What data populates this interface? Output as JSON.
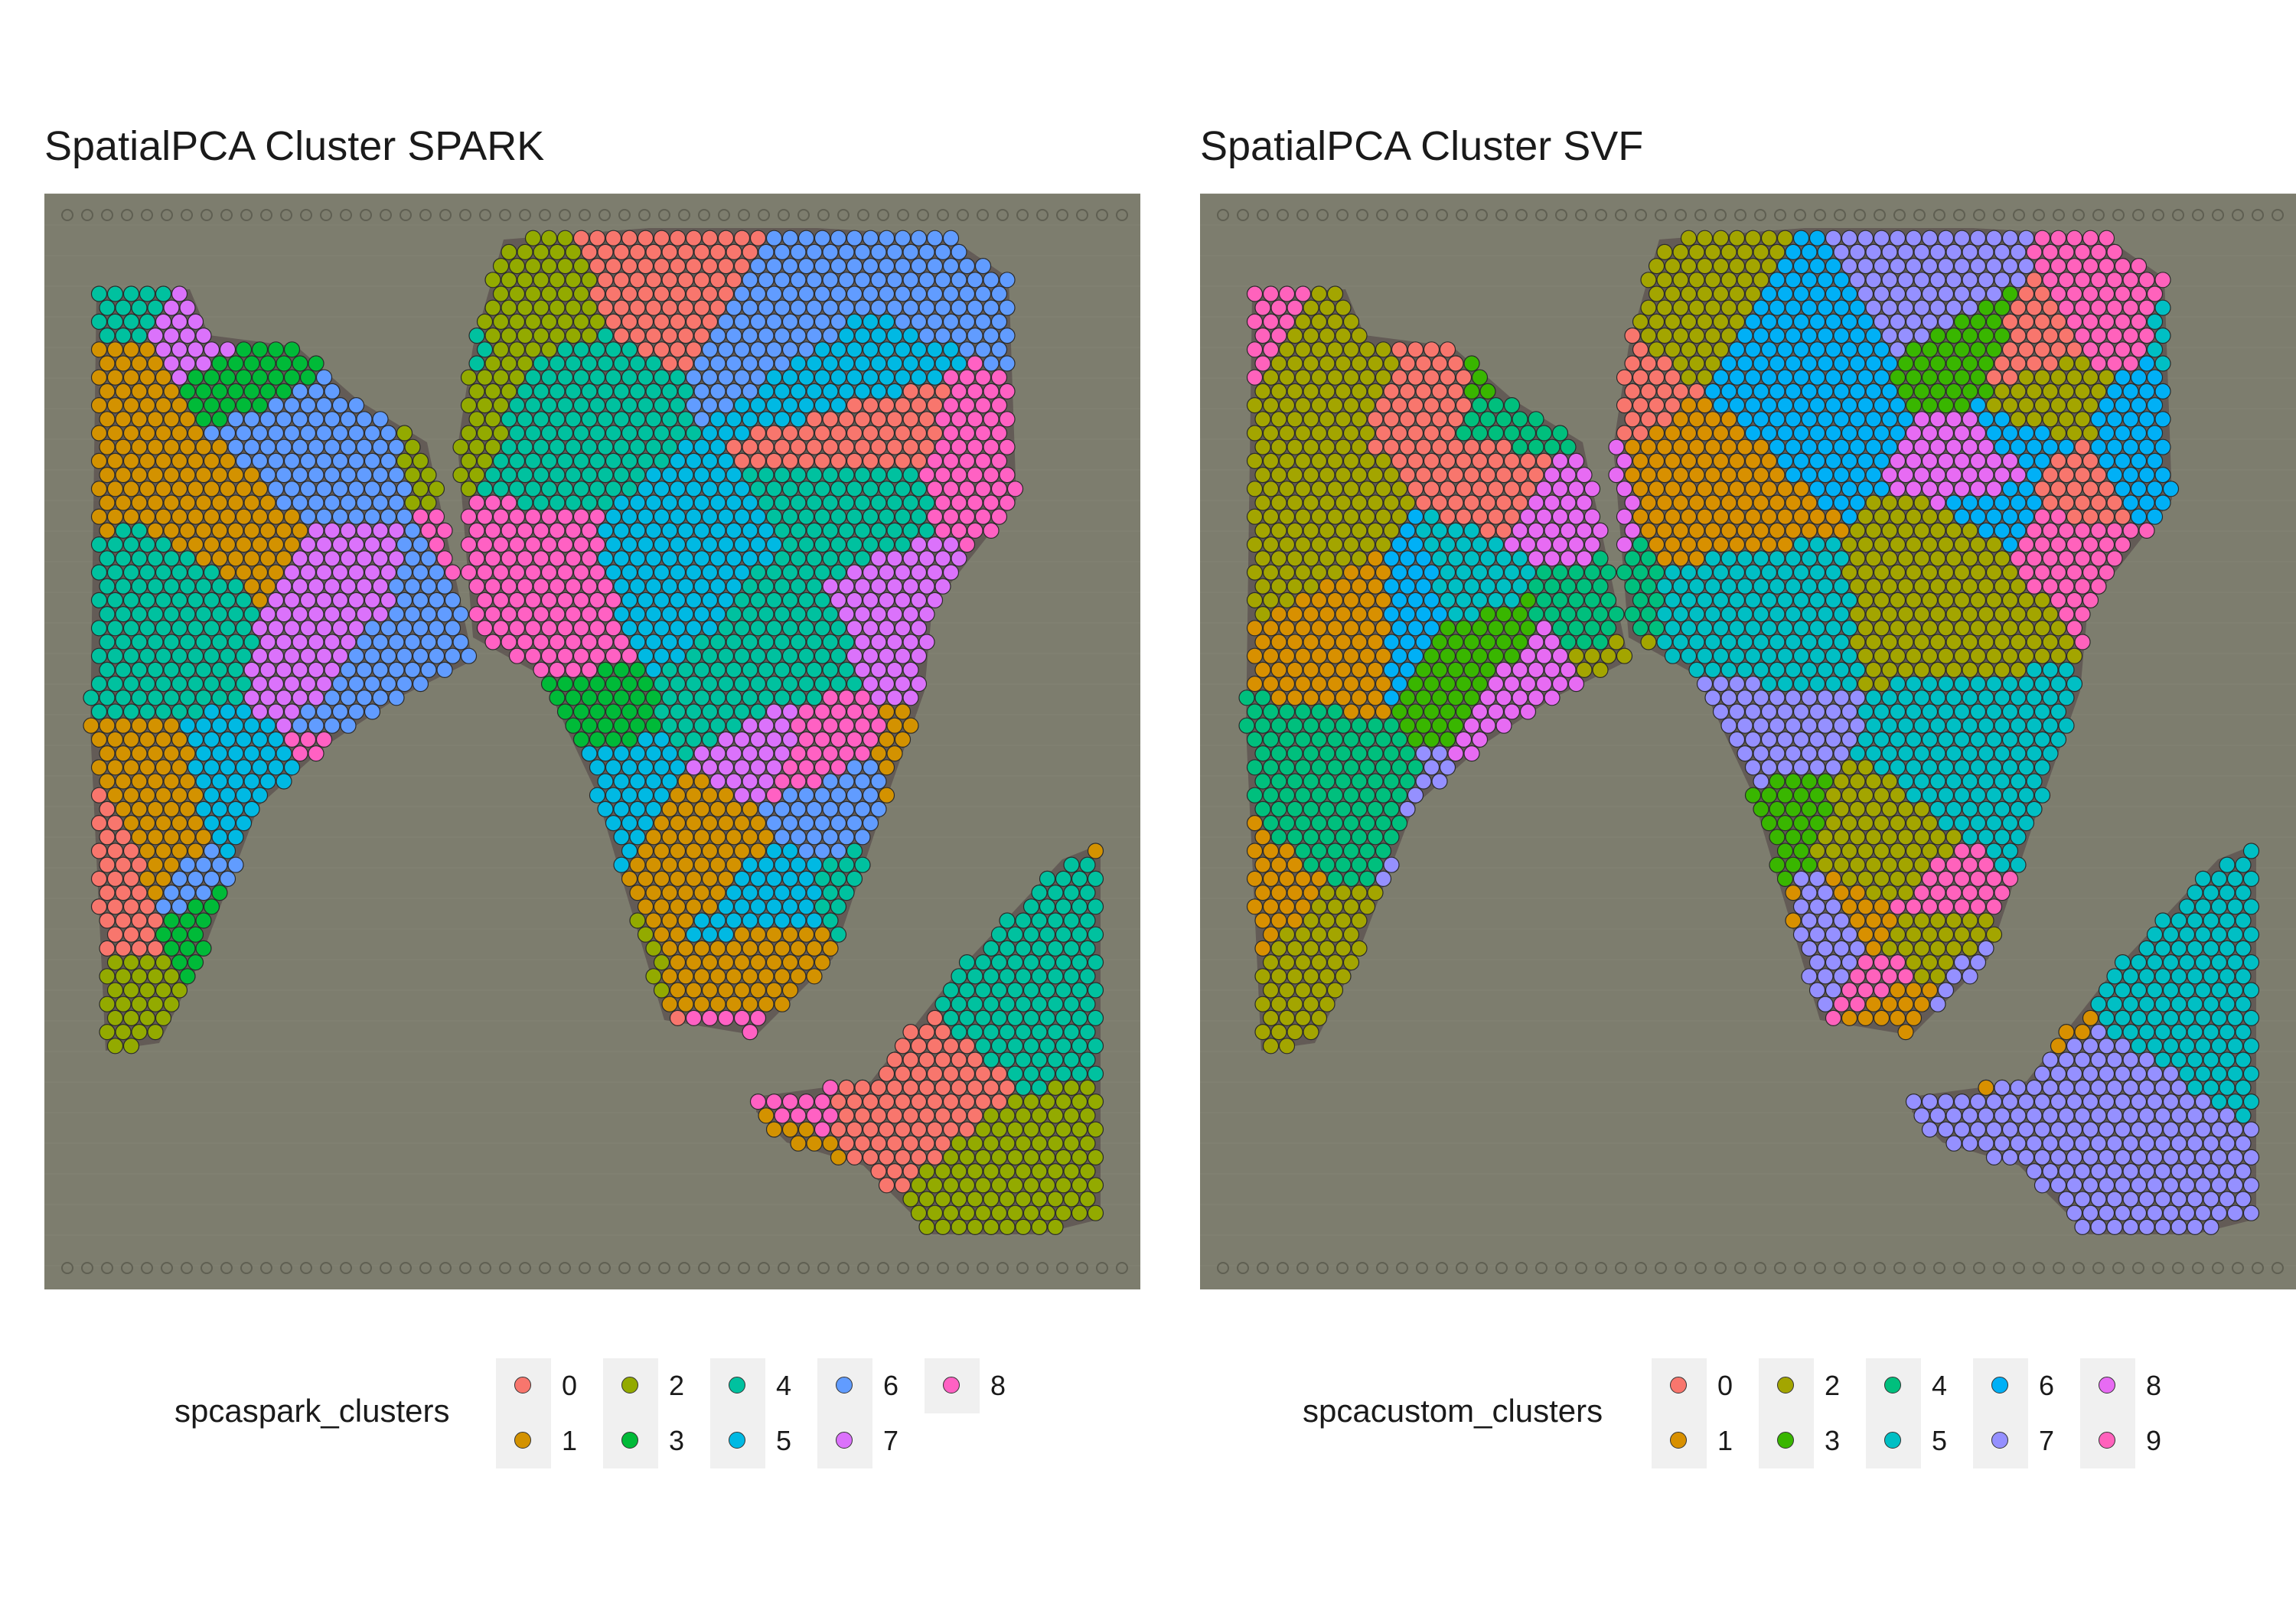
{
  "chart_data": [
    {
      "type": "scatter",
      "title": "SpatialPCA Cluster SPARK",
      "legend": {
        "title": "spcaspark_clusters",
        "placement": "bottom",
        "entries": [
          "0",
          "1",
          "2",
          "3",
          "4",
          "5",
          "6",
          "7",
          "8"
        ]
      },
      "colors": {
        "0": "#F8766D",
        "1": "#D39200",
        "2": "#93AA00",
        "3": "#00BA38",
        "4": "#00C19F",
        "5": "#00B9E3",
        "6": "#619CFF",
        "7": "#DB72FB",
        "8": "#FF61C3"
      },
      "background": "#7d7d6e",
      "grid": false
    },
    {
      "type": "scatter",
      "title": "SpatialPCA Cluster SVF",
      "legend": {
        "title": "spcacustom_clusters",
        "placement": "bottom",
        "entries": [
          "0",
          "1",
          "2",
          "3",
          "4",
          "5",
          "6",
          "7",
          "8",
          "9"
        ]
      },
      "colors": {
        "0": "#F8766D",
        "1": "#D89000",
        "2": "#A3A500",
        "3": "#39B600",
        "4": "#00BF7D",
        "5": "#00BFC4",
        "6": "#00B0F6",
        "7": "#9590FF",
        "8": "#E76BF3",
        "9": "#FF62BC"
      },
      "background": "#7d7d6e",
      "grid": false
    }
  ]
}
